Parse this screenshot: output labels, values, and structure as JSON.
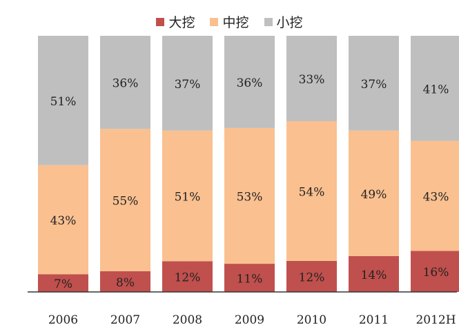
{
  "chart_data": {
    "type": "bar",
    "stacked": true,
    "percent": true,
    "categories": [
      "2006",
      "2007",
      "2008",
      "2009",
      "2010",
      "2011",
      "2012H"
    ],
    "series": [
      {
        "name": "大挖",
        "values": [
          7,
          8,
          12,
          11,
          12,
          14,
          16
        ],
        "color": "#c0504d"
      },
      {
        "name": "中挖",
        "values": [
          43,
          55,
          51,
          53,
          54,
          49,
          43
        ],
        "color": "#fac090"
      },
      {
        "name": "小挖",
        "values": [
          51,
          36,
          37,
          36,
          33,
          37,
          41
        ],
        "color": "#bfbfbf"
      }
    ],
    "value_labels": [
      [
        "7%",
        "8%",
        "12%",
        "11%",
        "12%",
        "14%",
        "16%"
      ],
      [
        "43%",
        "55%",
        "51%",
        "53%",
        "54%",
        "49%",
        "43%"
      ],
      [
        "51%",
        "36%",
        "37%",
        "36%",
        "33%",
        "37%",
        "41%"
      ]
    ],
    "ylim": [
      0,
      100
    ],
    "grid": false,
    "legend_position": "top-center",
    "title": "",
    "xlabel": "",
    "ylabel": ""
  }
}
